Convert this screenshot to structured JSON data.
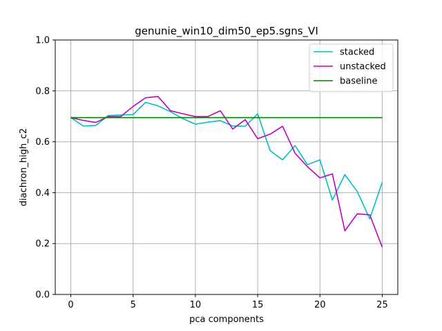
{
  "chart_data": {
    "type": "line",
    "title": "genunie_win10_dim50_ep5.sgns_VI",
    "xlabel": "pca components",
    "ylabel": "diachron_high_c2",
    "xlim": [
      -1.25,
      26.25
    ],
    "ylim": [
      0.0,
      1.0
    ],
    "xticks": [
      0,
      5,
      10,
      15,
      20,
      25
    ],
    "yticks": [
      0.0,
      0.2,
      0.4,
      0.6,
      0.8,
      1.0
    ],
    "xtick_labels": [
      "0",
      "5",
      "10",
      "15",
      "20",
      "25"
    ],
    "ytick_labels": [
      "0.0",
      "0.2",
      "0.4",
      "0.6",
      "0.8",
      "1.0"
    ],
    "grid": true,
    "legend_position": "top-right",
    "x": [
      0,
      1,
      2,
      3,
      4,
      5,
      6,
      7,
      8,
      9,
      10,
      11,
      12,
      13,
      14,
      15,
      16,
      17,
      18,
      19,
      20,
      21,
      22,
      23,
      24,
      25
    ],
    "series": [
      {
        "name": "stacked",
        "color": "#00bfbf",
        "values": [
          0.695,
          0.662,
          0.664,
          0.703,
          0.705,
          0.707,
          0.755,
          0.741,
          0.718,
          0.691,
          0.669,
          0.677,
          0.683,
          0.662,
          0.661,
          0.71,
          0.565,
          0.529,
          0.585,
          0.51,
          0.529,
          0.371,
          0.471,
          0.404,
          0.297,
          0.441
        ]
      },
      {
        "name": "unstacked",
        "color": "#bf00bf",
        "values": [
          0.695,
          0.684,
          0.676,
          0.699,
          0.699,
          0.739,
          0.773,
          0.778,
          0.722,
          0.71,
          0.699,
          0.699,
          0.722,
          0.65,
          0.687,
          0.612,
          0.63,
          0.661,
          0.555,
          0.502,
          0.458,
          0.474,
          0.25,
          0.317,
          0.313,
          0.186
        ]
      },
      {
        "name": "baseline",
        "color": "#008000",
        "values": [
          0.695,
          0.695,
          0.695,
          0.695,
          0.695,
          0.695,
          0.695,
          0.695,
          0.695,
          0.695,
          0.695,
          0.695,
          0.695,
          0.695,
          0.695,
          0.695,
          0.695,
          0.695,
          0.695,
          0.695,
          0.695,
          0.695,
          0.695,
          0.695,
          0.695,
          0.695
        ]
      }
    ]
  }
}
